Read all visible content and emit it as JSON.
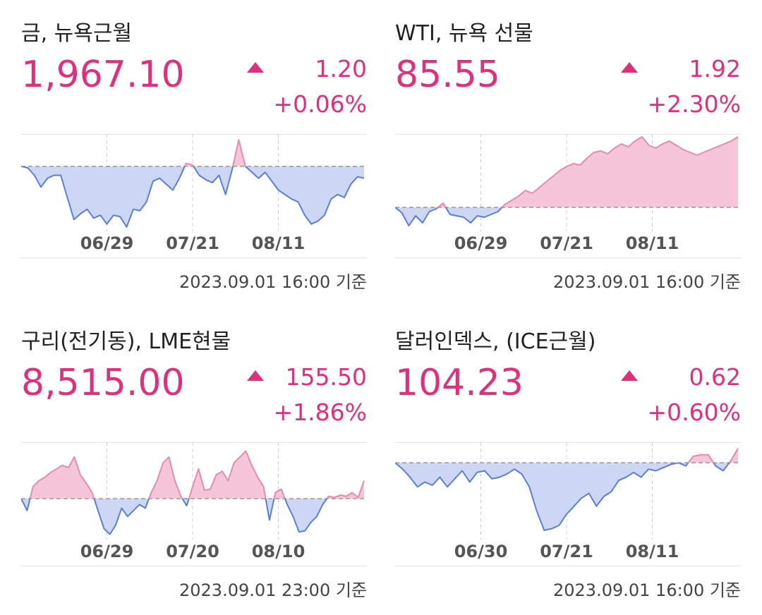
{
  "colors": {
    "up": "#e0307a",
    "up_fill": "#f5c6d8",
    "down": "#5a7fd6",
    "down_fill": "#cdd6f2",
    "grid": "#e4e4e4",
    "baseline": "#9a9a9a"
  },
  "cards": [
    {
      "title": "금, 뉴욕근월",
      "price": "1,967.10",
      "change": "1.20",
      "change_pct": "+0.06%",
      "direction_icon": "triangle-up-icon",
      "timestamp": "2023.09.01 16:00 기준"
    },
    {
      "title": "WTI, 뉴욕 선물",
      "price": "85.55",
      "change": "1.92",
      "change_pct": "+2.30%",
      "direction_icon": "triangle-up-icon",
      "timestamp": "2023.09.01 16:00 기준"
    },
    {
      "title": "구리(전기동), LME현물",
      "price": "8,515.00",
      "change": "155.50",
      "change_pct": "+1.86%",
      "direction_icon": "triangle-up-icon",
      "timestamp": "2023.09.01 23:00 기준"
    },
    {
      "title": "달러인덱스, (ICE근월)",
      "price": "104.23",
      "change": "0.62",
      "change_pct": "+0.60%",
      "direction_icon": "triangle-up-icon",
      "timestamp": "2023.09.01 16:00 기준"
    }
  ],
  "chart_data": [
    {
      "type": "area",
      "x_ticks": [
        "06/29",
        "07/21",
        "08/11"
      ],
      "tick_index": [
        10,
        20,
        30
      ],
      "baseline": 0,
      "ylim": [
        -4.2,
        2
      ],
      "values": [
        0,
        -0.1,
        -0.6,
        -1.4,
        -0.8,
        -0.6,
        -0.6,
        -2.1,
        -3.6,
        -3.2,
        -2.9,
        -3.5,
        -3.3,
        -3.9,
        -3.3,
        -3.4,
        -4.1,
        -2.9,
        -3.0,
        -2.4,
        -1.0,
        -0.8,
        -1.2,
        -1.6,
        -0.8,
        0.2,
        0.1,
        -0.6,
        -0.9,
        -1.1,
        -0.6,
        -1.9,
        -0.2,
        1.8,
        0.0,
        -0.4,
        -0.8,
        -0.4,
        -1.0,
        -1.6,
        -1.9,
        -2.2,
        -2.4,
        -3.3,
        -3.9,
        -3.7,
        -3.3,
        -2.2,
        -1.9,
        -2.1,
        -1.2,
        -0.7,
        -0.8
      ]
    },
    {
      "type": "area",
      "x_ticks": [
        "06/29",
        "07/21",
        "08/11"
      ],
      "tick_index": [
        10,
        20,
        30
      ],
      "baseline": 0,
      "ylim": [
        -1.5,
        5
      ],
      "values": [
        0,
        -0.4,
        -1.3,
        -0.6,
        -1.1,
        -0.3,
        -0.1,
        0.3,
        -0.5,
        -0.6,
        -0.7,
        -1.1,
        -0.6,
        -0.7,
        -0.5,
        -0.3,
        0.2,
        0.5,
        0.8,
        1.2,
        1.0,
        1.4,
        1.8,
        2.2,
        2.6,
        2.9,
        3.1,
        3.0,
        3.5,
        3.9,
        4.0,
        3.8,
        4.2,
        4.5,
        4.3,
        4.7,
        5.0,
        4.4,
        4.2,
        4.5,
        4.7,
        4.4,
        4.1,
        3.9,
        3.7,
        3.9,
        4.1,
        4.3,
        4.5,
        4.7,
        5.0
      ]
    },
    {
      "type": "area",
      "x_ticks": [
        "06/29",
        "07/20",
        "08/10"
      ],
      "tick_index": [
        10,
        20,
        30
      ],
      "baseline": 0,
      "ylim": [
        -3.2,
        4.5
      ],
      "values": [
        0,
        -1.0,
        1.0,
        1.5,
        1.8,
        2.2,
        2.5,
        2.8,
        2.6,
        3.5,
        2.0,
        1.3,
        0.5,
        -1.0,
        -2.5,
        -3.0,
        -2.2,
        -0.8,
        -1.5,
        -1.0,
        -0.5,
        -0.8,
        0.5,
        1.5,
        3.0,
        3.5,
        1.5,
        0.2,
        -0.6,
        1.0,
        2.5,
        0.7,
        0.8,
        2.0,
        2.3,
        1.5,
        3.0,
        3.5,
        4.0,
        2.8,
        1.8,
        1.0,
        -1.8,
        0.5,
        0.8,
        -0.5,
        -1.5,
        -2.8,
        -2.7,
        -2.0,
        -1.5,
        -0.5,
        0.2,
        0.1,
        0.3,
        0.2,
        0.5,
        0.1,
        1.5
      ]
    },
    {
      "type": "area",
      "x_ticks": [
        "06/30",
        "07/21",
        "08/11"
      ],
      "tick_index": [
        10,
        20,
        30
      ],
      "baseline": 0,
      "ylim": [
        -4.6,
        1.1
      ],
      "values": [
        0,
        -0.4,
        -0.9,
        -1.5,
        -1.2,
        -1.4,
        -0.9,
        -1.5,
        -1.0,
        -0.5,
        -1.2,
        -0.6,
        -0.5,
        -1.0,
        -0.9,
        -0.7,
        -0.4,
        -0.7,
        -1.5,
        -3.0,
        -4.2,
        -4.1,
        -3.9,
        -3.2,
        -2.7,
        -2.2,
        -1.9,
        -2.7,
        -2.1,
        -1.8,
        -1.1,
        -0.9,
        -0.6,
        -0.9,
        -0.4,
        -0.5,
        -0.3,
        -0.1,
        0.0,
        -0.2,
        0.4,
        0.5,
        0.5,
        -0.2,
        -0.5,
        0.1,
        0.9
      ]
    }
  ]
}
